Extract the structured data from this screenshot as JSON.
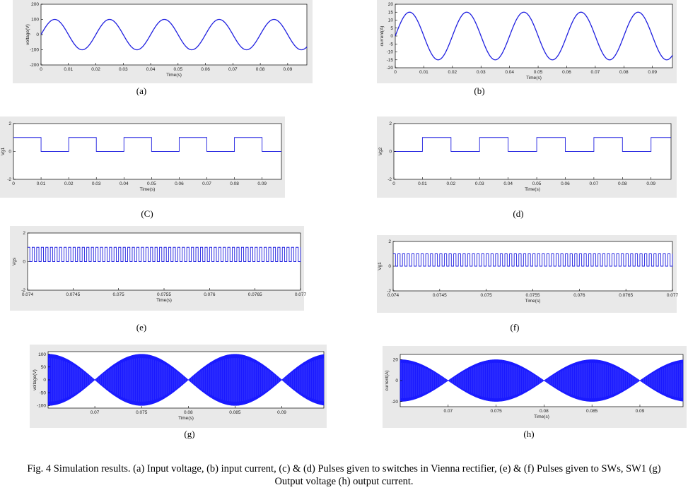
{
  "charts": [
    {
      "id": "a",
      "sublabel": "(a)",
      "chart_data": {
        "type": "line",
        "signal": "sine",
        "amplitude": 100,
        "frequency_hz": 50,
        "phase": "sine",
        "xlim": [
          0,
          0.097
        ],
        "ylim": [
          -200,
          200
        ],
        "xticks": [
          "0",
          "0.01",
          "0.02",
          "0.03",
          "0.04",
          "0.05",
          "0.06",
          "0.07",
          "0.08",
          "0.09"
        ],
        "yticks": [
          "200",
          "100",
          "0",
          "-100",
          "-200"
        ],
        "xlabel": "Time(s)",
        "ylabel": "voltage(V)",
        "color": "#2020e0"
      }
    },
    {
      "id": "b",
      "sublabel": "(b)",
      "chart_data": {
        "type": "line",
        "signal": "sine",
        "amplitude": 15,
        "frequency_hz": 50,
        "phase": "sine",
        "xlim": [
          0,
          0.097
        ],
        "ylim": [
          -20,
          20
        ],
        "xticks": [
          "0",
          "0.01",
          "0.02",
          "0.03",
          "0.04",
          "0.05",
          "0.06",
          "0.07",
          "0.08",
          "0.09"
        ],
        "yticks": [
          "20",
          "15",
          "10",
          "5",
          "0",
          "-5",
          "-10",
          "-15",
          "-20"
        ],
        "xlabel": "Time(s)",
        "ylabel": "current(A)",
        "color": "#2020e0"
      }
    },
    {
      "id": "c",
      "sublabel": "(C)",
      "chart_data": {
        "type": "line",
        "signal": "square",
        "high": 1,
        "low": 0,
        "period": 0.02,
        "starts_high": true,
        "xlim": [
          0,
          0.097
        ],
        "ylim": [
          -2,
          2
        ],
        "xticks": [
          "0",
          "0.01",
          "0.02",
          "0.03",
          "0.04",
          "0.05",
          "0.06",
          "0.07",
          "0.08",
          "0.09"
        ],
        "yticks": [
          "2",
          "0",
          "-2"
        ],
        "xlabel": "Time(s)",
        "ylabel": "Vg1",
        "color": "#2020e0"
      }
    },
    {
      "id": "d",
      "sublabel": "(d)",
      "chart_data": {
        "type": "line",
        "signal": "square",
        "high": 1,
        "low": 0,
        "period": 0.02,
        "starts_high": false,
        "xlim": [
          0,
          0.097
        ],
        "ylim": [
          -2,
          2
        ],
        "xticks": [
          "0",
          "0.01",
          "0.02",
          "0.03",
          "0.04",
          "0.05",
          "0.06",
          "0.07",
          "0.08",
          "0.09"
        ],
        "yticks": [
          "2",
          "0",
          "-2"
        ],
        "xlabel": "Time(s)",
        "ylabel": "Vg2",
        "color": "#2020e0"
      }
    },
    {
      "id": "e",
      "sublabel": "(e)",
      "chart_data": {
        "type": "line",
        "signal": "square",
        "high": 1,
        "low": 0,
        "period": 5e-05,
        "starts_high": true,
        "xlim": [
          0.074,
          0.077
        ],
        "ylim": [
          -2,
          2
        ],
        "xticks": [
          "0.074",
          "0.0745",
          "0.075",
          "0.0755",
          "0.076",
          "0.0765",
          "0.077"
        ],
        "yticks": [
          "2",
          "0",
          "-2"
        ],
        "xlabel": "Time(s)",
        "ylabel": "Vgs",
        "color": "#2020e0"
      }
    },
    {
      "id": "f",
      "sublabel": "(f)",
      "chart_data": {
        "type": "line",
        "signal": "square",
        "high": 1,
        "low": 0,
        "period": 5e-05,
        "starts_high": true,
        "xlim": [
          0.074,
          0.077
        ],
        "ylim": [
          -2,
          2
        ],
        "xticks": [
          "0.074",
          "0.0745",
          "0.075",
          "0.0755",
          "0.076",
          "0.0765",
          "0.077"
        ],
        "yticks": [
          "2",
          "0",
          "-2"
        ],
        "xlabel": "Time(s)",
        "ylabel": "Vg1",
        "color": "#2020e0"
      }
    },
    {
      "id": "g",
      "sublabel": "(g)",
      "chart_data": {
        "type": "area",
        "signal": "envelope",
        "amplitude": 100,
        "envelope_frequency_hz": 50,
        "xlim": [
          0.065,
          0.0945
        ],
        "ylim": [
          -110,
          110
        ],
        "xticks": [
          "0.07",
          "0.075",
          "0.08",
          "0.085",
          "0.09"
        ],
        "yticks": [
          "100",
          "50",
          "0",
          "-50",
          "-100"
        ],
        "xlabel": "Time(s)",
        "ylabel": "voltage(V)",
        "color": "#1a1aff"
      }
    },
    {
      "id": "h",
      "sublabel": "(h)",
      "chart_data": {
        "type": "area",
        "signal": "envelope",
        "amplitude": 20,
        "envelope_frequency_hz": 50,
        "xlim": [
          0.065,
          0.0945
        ],
        "ylim": [
          -25,
          25
        ],
        "xticks": [
          "0.07",
          "0.075",
          "0.08",
          "0.085",
          "0.09"
        ],
        "yticks": [
          "20",
          "0",
          "-20"
        ],
        "xlabel": "Time(s)",
        "ylabel": "current(A)",
        "color": "#1a1aff"
      }
    }
  ],
  "caption": "Fig. 4 Simulation results. (a) Input voltage, (b) input current, (c) & (d) Pulses given to switches in Vienna rectifier, (e) & (f) Pulses given to SWs, SW1 (g) Output voltage (h) output current."
}
